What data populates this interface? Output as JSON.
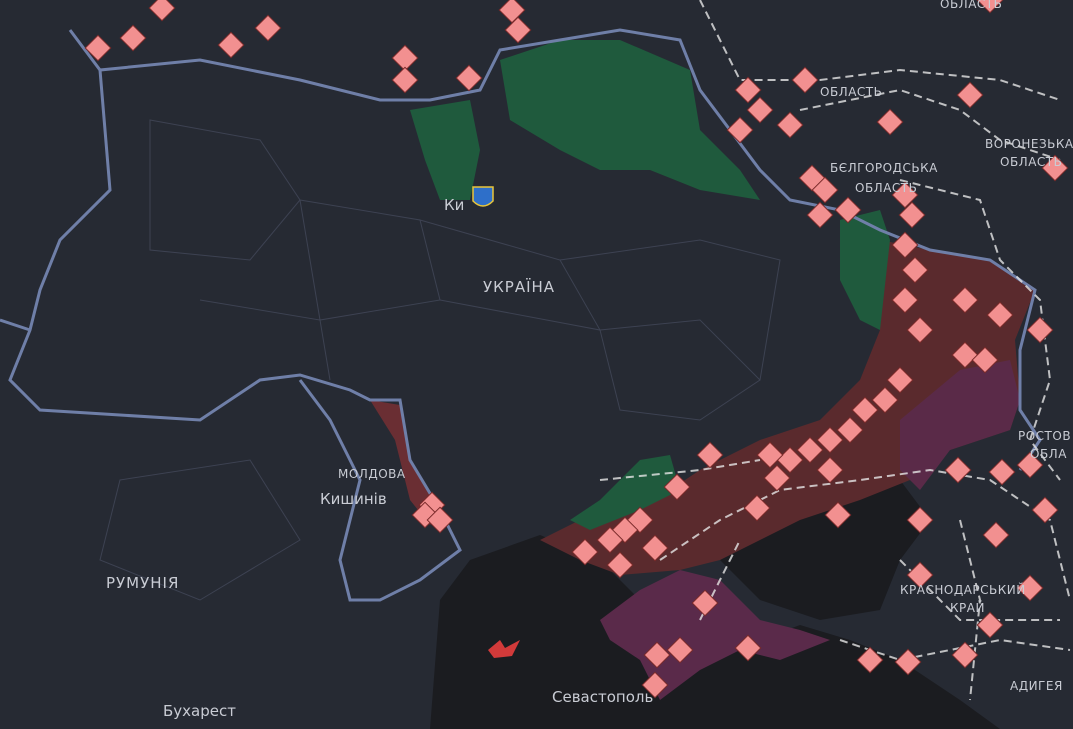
{
  "map": {
    "labels": {
      "kyiv": "Ки",
      "ukraine": "УКРАЇНА",
      "moldova": "МОЛДОВА",
      "chisinau": "Кишинів",
      "romania": "РУМУНІЯ",
      "bucharest": "Бухарест",
      "sevastopol": "Севастополь",
      "region_top": "ОБЛАСТЬ",
      "belgorod_1": "БЄЛГОРОДСЬКА",
      "belgorod_2": "ОБЛАСТЬ",
      "voronezh_1": "ВОРОНЕЗЬКА",
      "voronezh_2": "ОБЛАСТЬ",
      "rostov_1": "РОСТОВ",
      "rostov_2": "ОБЛА",
      "krasnodar_1": "КРАСНОДАРСЬКИЙ",
      "krasnodar_2": "КРАЙ",
      "adygea": "АДИГЕЯ",
      "corner": "ОБЛАСТЬ"
    }
  }
}
